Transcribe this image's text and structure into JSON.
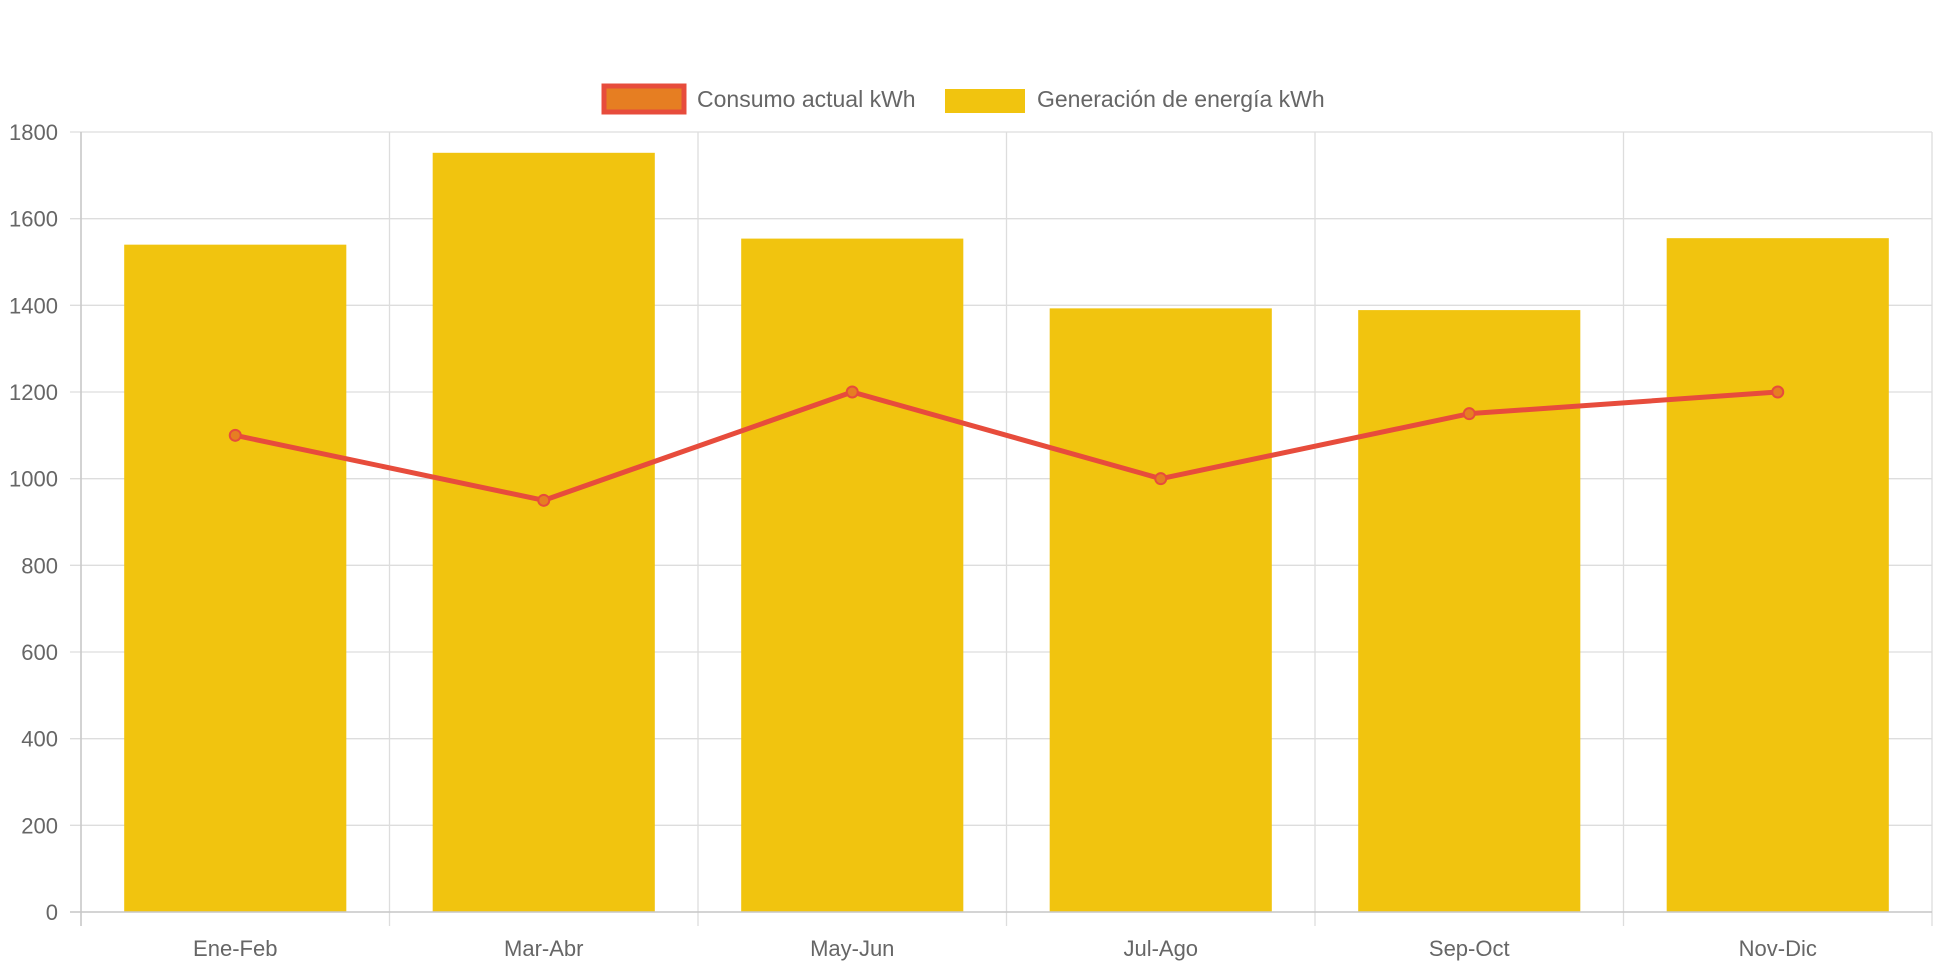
{
  "chart_data": {
    "type": "bar",
    "title": "",
    "xlabel": "",
    "ylabel": "",
    "categories": [
      "Ene-Feb",
      "Mar-Abr",
      "May-Jun",
      "Jul-Ago",
      "Sep-Oct",
      "Nov-Dic"
    ],
    "ylim": [
      0,
      1800
    ],
    "y_ticks": [
      0,
      200,
      400,
      600,
      800,
      1000,
      1200,
      1400,
      1600,
      1800
    ],
    "grid": true,
    "legend_position": "top-center",
    "series": [
      {
        "name": "Consumo actual kWh",
        "type": "line",
        "values": [
          1100,
          950,
          1200,
          1000,
          1150,
          1200
        ],
        "color": "#e74c3c",
        "point_fill": "#e67e22"
      },
      {
        "name": "Generación de energía kWh",
        "type": "bar",
        "values": [
          1540,
          1752,
          1554,
          1393,
          1389,
          1555
        ],
        "color": "#f1c40f"
      }
    ]
  }
}
